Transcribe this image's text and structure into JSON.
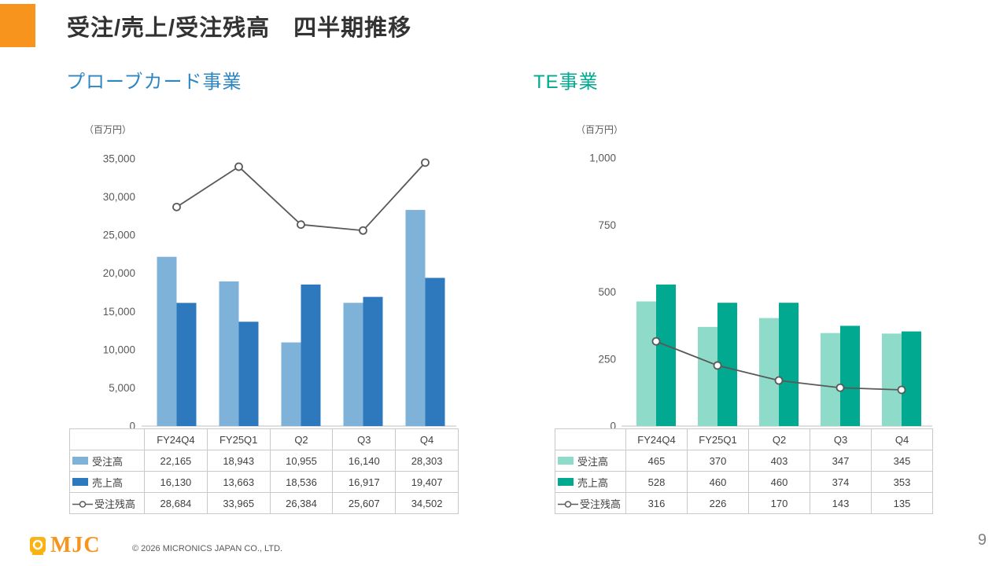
{
  "title": "受注/売上/受注残高　四半期推移",
  "footer": {
    "logo_text": "MJC",
    "copyright": "© 2026 MICRONICS JAPAN CO., LTD.",
    "page_number": "9"
  },
  "chart_data": [
    {
      "type": "bar",
      "section_title": "プローブカード事業",
      "section_title_color": "#2E86C1",
      "unit_label": "（百万円）",
      "categories": [
        "FY24Q4",
        "FY25Q1",
        "Q2",
        "Q3",
        "Q4"
      ],
      "series": [
        {
          "name": "受注高",
          "type": "bar",
          "color": "#7FB2D9",
          "values": [
            22165,
            18943,
            10955,
            16140,
            28303
          ]
        },
        {
          "name": "売上高",
          "type": "bar",
          "color": "#2E79BE",
          "values": [
            16130,
            13663,
            18536,
            16917,
            19407
          ]
        },
        {
          "name": "受注残高",
          "type": "line",
          "color": "#595959",
          "values": [
            28684,
            33965,
            26384,
            25607,
            34502
          ]
        }
      ],
      "ylim": [
        0,
        35000
      ],
      "yticks": [
        0,
        5000,
        10000,
        15000,
        20000,
        25000,
        30000,
        35000
      ],
      "grid": false,
      "legend_position": "table-below"
    },
    {
      "type": "bar",
      "section_title": "TE事業",
      "section_title_color": "#00A98F",
      "unit_label": "（百万円）",
      "categories": [
        "FY24Q4",
        "FY25Q1",
        "Q2",
        "Q3",
        "Q4"
      ],
      "series": [
        {
          "name": "受注高",
          "type": "bar",
          "color": "#8EDBC9",
          "values": [
            465,
            370,
            403,
            347,
            345
          ]
        },
        {
          "name": "売上高",
          "type": "bar",
          "color": "#00A98F",
          "values": [
            528,
            460,
            460,
            374,
            353
          ]
        },
        {
          "name": "受注残高",
          "type": "line",
          "color": "#595959",
          "values": [
            316,
            226,
            170,
            143,
            135
          ]
        }
      ],
      "ylim": [
        0,
        1000
      ],
      "yticks": [
        0,
        250,
        500,
        750,
        1000
      ],
      "grid": false,
      "legend_position": "table-below"
    }
  ]
}
